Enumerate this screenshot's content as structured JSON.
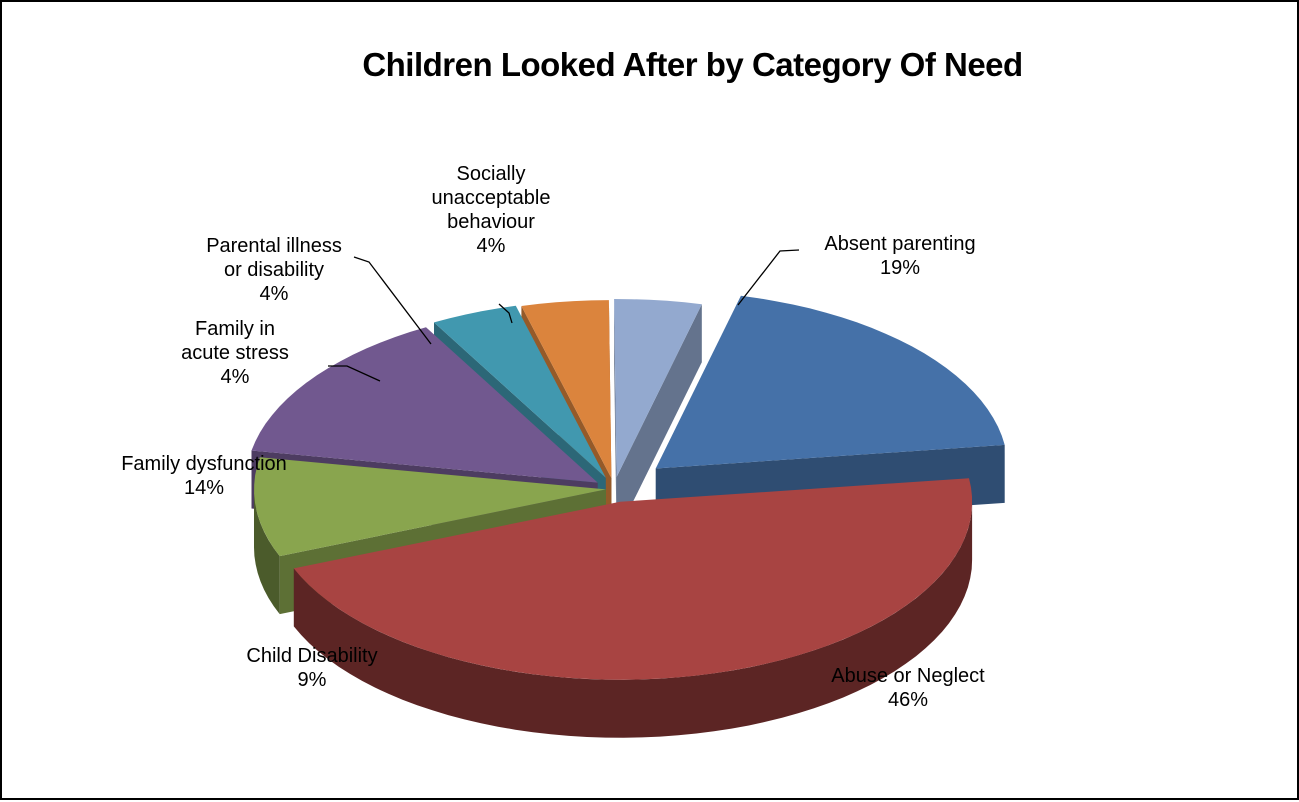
{
  "chart_data": {
    "type": "pie",
    "title": "Children Looked After by Category Of Need",
    "style": "3d-exploded",
    "categories": [
      "Absent parenting",
      "Abuse or Neglect",
      "Child Disability",
      "Family dysfunction",
      "Family in acute stress",
      "Parental illness or disability",
      "Socially unacceptable behaviour"
    ],
    "values": [
      19,
      46,
      9,
      14,
      4,
      4,
      4
    ],
    "value_labels": [
      "19%",
      "46%",
      "9%",
      "14%",
      "4%",
      "4%",
      "4%"
    ],
    "label_lines": [
      [
        "Absent parenting",
        "19%"
      ],
      [
        "Abuse or Neglect",
        "46%"
      ],
      [
        "Child Disability",
        "9%"
      ],
      [
        "Family dysfunction",
        "14%"
      ],
      [
        "Family in",
        "acute stress",
        "4%"
      ],
      [
        "Parental illness",
        "or disability",
        "4%"
      ],
      [
        "Socially",
        "unacceptable",
        "behaviour",
        "4%"
      ]
    ],
    "colors": [
      "#4571A8",
      "#A84442",
      "#89A54E",
      "#71588F",
      "#4198AF",
      "#DB843D",
      "#93A9CF"
    ],
    "legend": "none"
  }
}
